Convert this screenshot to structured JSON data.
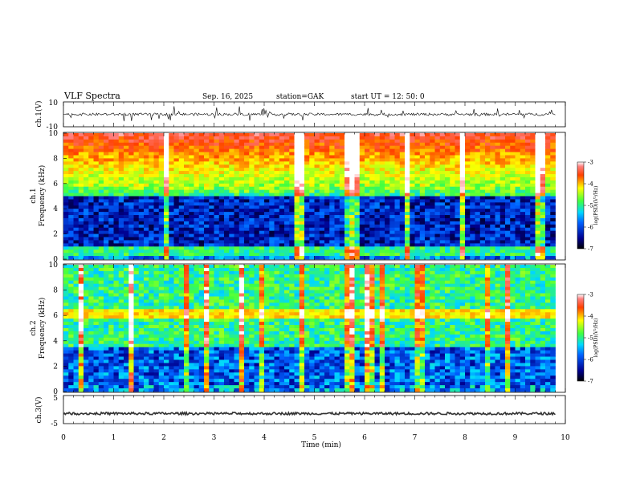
{
  "header": {
    "title": "VLF  Spectra",
    "date": "Sep. 16, 2025",
    "station": "station=GAK",
    "start": "start  UT  =    12: 50: 0"
  },
  "chart_data": [
    {
      "type": "line",
      "panel": "ch1-waveform",
      "ylabel": "ch.1(V)",
      "ylim": [
        -10,
        10
      ],
      "ytick_labels": [
        "10",
        "-10"
      ],
      "xlim": [
        0,
        9.8
      ],
      "baseline": 0,
      "color": "#000000"
    },
    {
      "type": "heatmap",
      "panel": "ch1-spectrogram",
      "ylabel_lines": [
        "ch.1",
        "Frequency (kHz)"
      ],
      "ylim": [
        0,
        10
      ],
      "ytick_labels": [
        "0",
        "2",
        "4",
        "6",
        "8",
        "10"
      ],
      "xlim": [
        0,
        9.8
      ],
      "profile": "ch1",
      "colorbar": {
        "ticks": [
          "-3",
          "-4",
          "-5",
          "-6",
          "-7"
        ],
        "label": "log(PSD)(V²/Hz)",
        "range": [
          -7,
          -3
        ]
      }
    },
    {
      "type": "heatmap",
      "panel": "ch2-spectrogram",
      "ylabel_lines": [
        "ch.2",
        "Frequency (kHz)"
      ],
      "ylim": [
        0,
        10
      ],
      "ytick_labels": [
        "0",
        "2",
        "4",
        "6",
        "8",
        "10"
      ],
      "xlim": [
        0,
        9.8
      ],
      "profile": "ch2",
      "colorbar": {
        "ticks": [
          "-3",
          "-4",
          "-5",
          "-6",
          "-7"
        ],
        "label": "log(PSD)(V²/Hz)",
        "range": [
          -7,
          -3
        ]
      }
    },
    {
      "type": "line",
      "panel": "ch3-waveform",
      "ylabel": "ch.3(V)",
      "ylim": [
        -5,
        5
      ],
      "ytick_labels": [
        "5",
        "-5"
      ],
      "xlim": [
        0,
        9.8
      ],
      "baseline": -1.5,
      "color": "#333333"
    }
  ],
  "xaxis": {
    "label": "Time  (min)",
    "range": [
      0,
      10
    ],
    "tick_labels": [
      "0",
      "1",
      "2",
      "3",
      "4",
      "5",
      "6",
      "7",
      "8",
      "9",
      "10"
    ]
  }
}
